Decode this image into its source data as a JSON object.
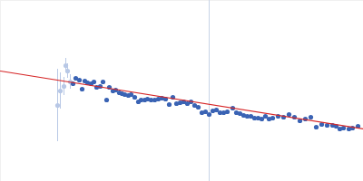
{
  "chart_data": {
    "type": "scatter",
    "tick_labels": false,
    "grid": false,
    "xlim": [
      0,
      400
    ],
    "ylim": [
      0,
      200
    ],
    "series": [
      {
        "color": "#b8c8e6",
        "marker": "circle",
        "x": [
          63,
          66,
          70,
          72,
          74,
          77
        ],
        "values": [
          84,
          100,
          105,
          128,
          122,
          110
        ],
        "errors": [
          40,
          20,
          10,
          8,
          8,
          8
        ]
      },
      {
        "color": "#3a63b4",
        "marker": "circle",
        "x": [
          80,
          83,
          87,
          90,
          93,
          96,
          100,
          103,
          106,
          110,
          113,
          117,
          120,
          124,
          127,
          131,
          134,
          137,
          141,
          144,
          148,
          152,
          155,
          159,
          162,
          166,
          170,
          174,
          178,
          182,
          186,
          190,
          194,
          198,
          202,
          206,
          210,
          214,
          218,
          222,
          226,
          230,
          234,
          238,
          242,
          246,
          250,
          256,
          260,
          264,
          268,
          272,
          276,
          280,
          284,
          288,
          292,
          296,
          300,
          306,
          312,
          318,
          324,
          330,
          336,
          342,
          348,
          354,
          360,
          366,
          370,
          374,
          378,
          384,
          388,
          394
        ],
        "values": [
          108,
          114,
          112,
          102,
          111,
          109,
          108,
          110,
          104,
          105,
          110,
          90,
          104,
          100,
          101,
          98,
          97,
          96,
          95,
          96,
          93,
          88,
          90,
          90,
          91,
          90,
          90,
          91,
          92,
          91,
          85,
          93,
          86,
          87,
          88,
          86,
          88,
          84,
          82,
          76,
          77,
          74,
          78,
          79,
          76,
          76,
          77,
          81,
          76,
          75,
          73,
          72,
          72,
          70,
          70,
          69,
          72,
          69,
          70,
          72,
          71,
          74,
          71,
          67,
          69,
          71,
          60,
          63,
          62,
          62,
          61,
          58,
          59,
          58,
          59,
          61
        ]
      }
    ],
    "fit_line": {
      "color": "#d62728",
      "x": [
        0,
        400
      ],
      "values": [
        122,
        58
      ]
    },
    "vline": {
      "color": "#c8d4e6",
      "x": 230
    }
  }
}
